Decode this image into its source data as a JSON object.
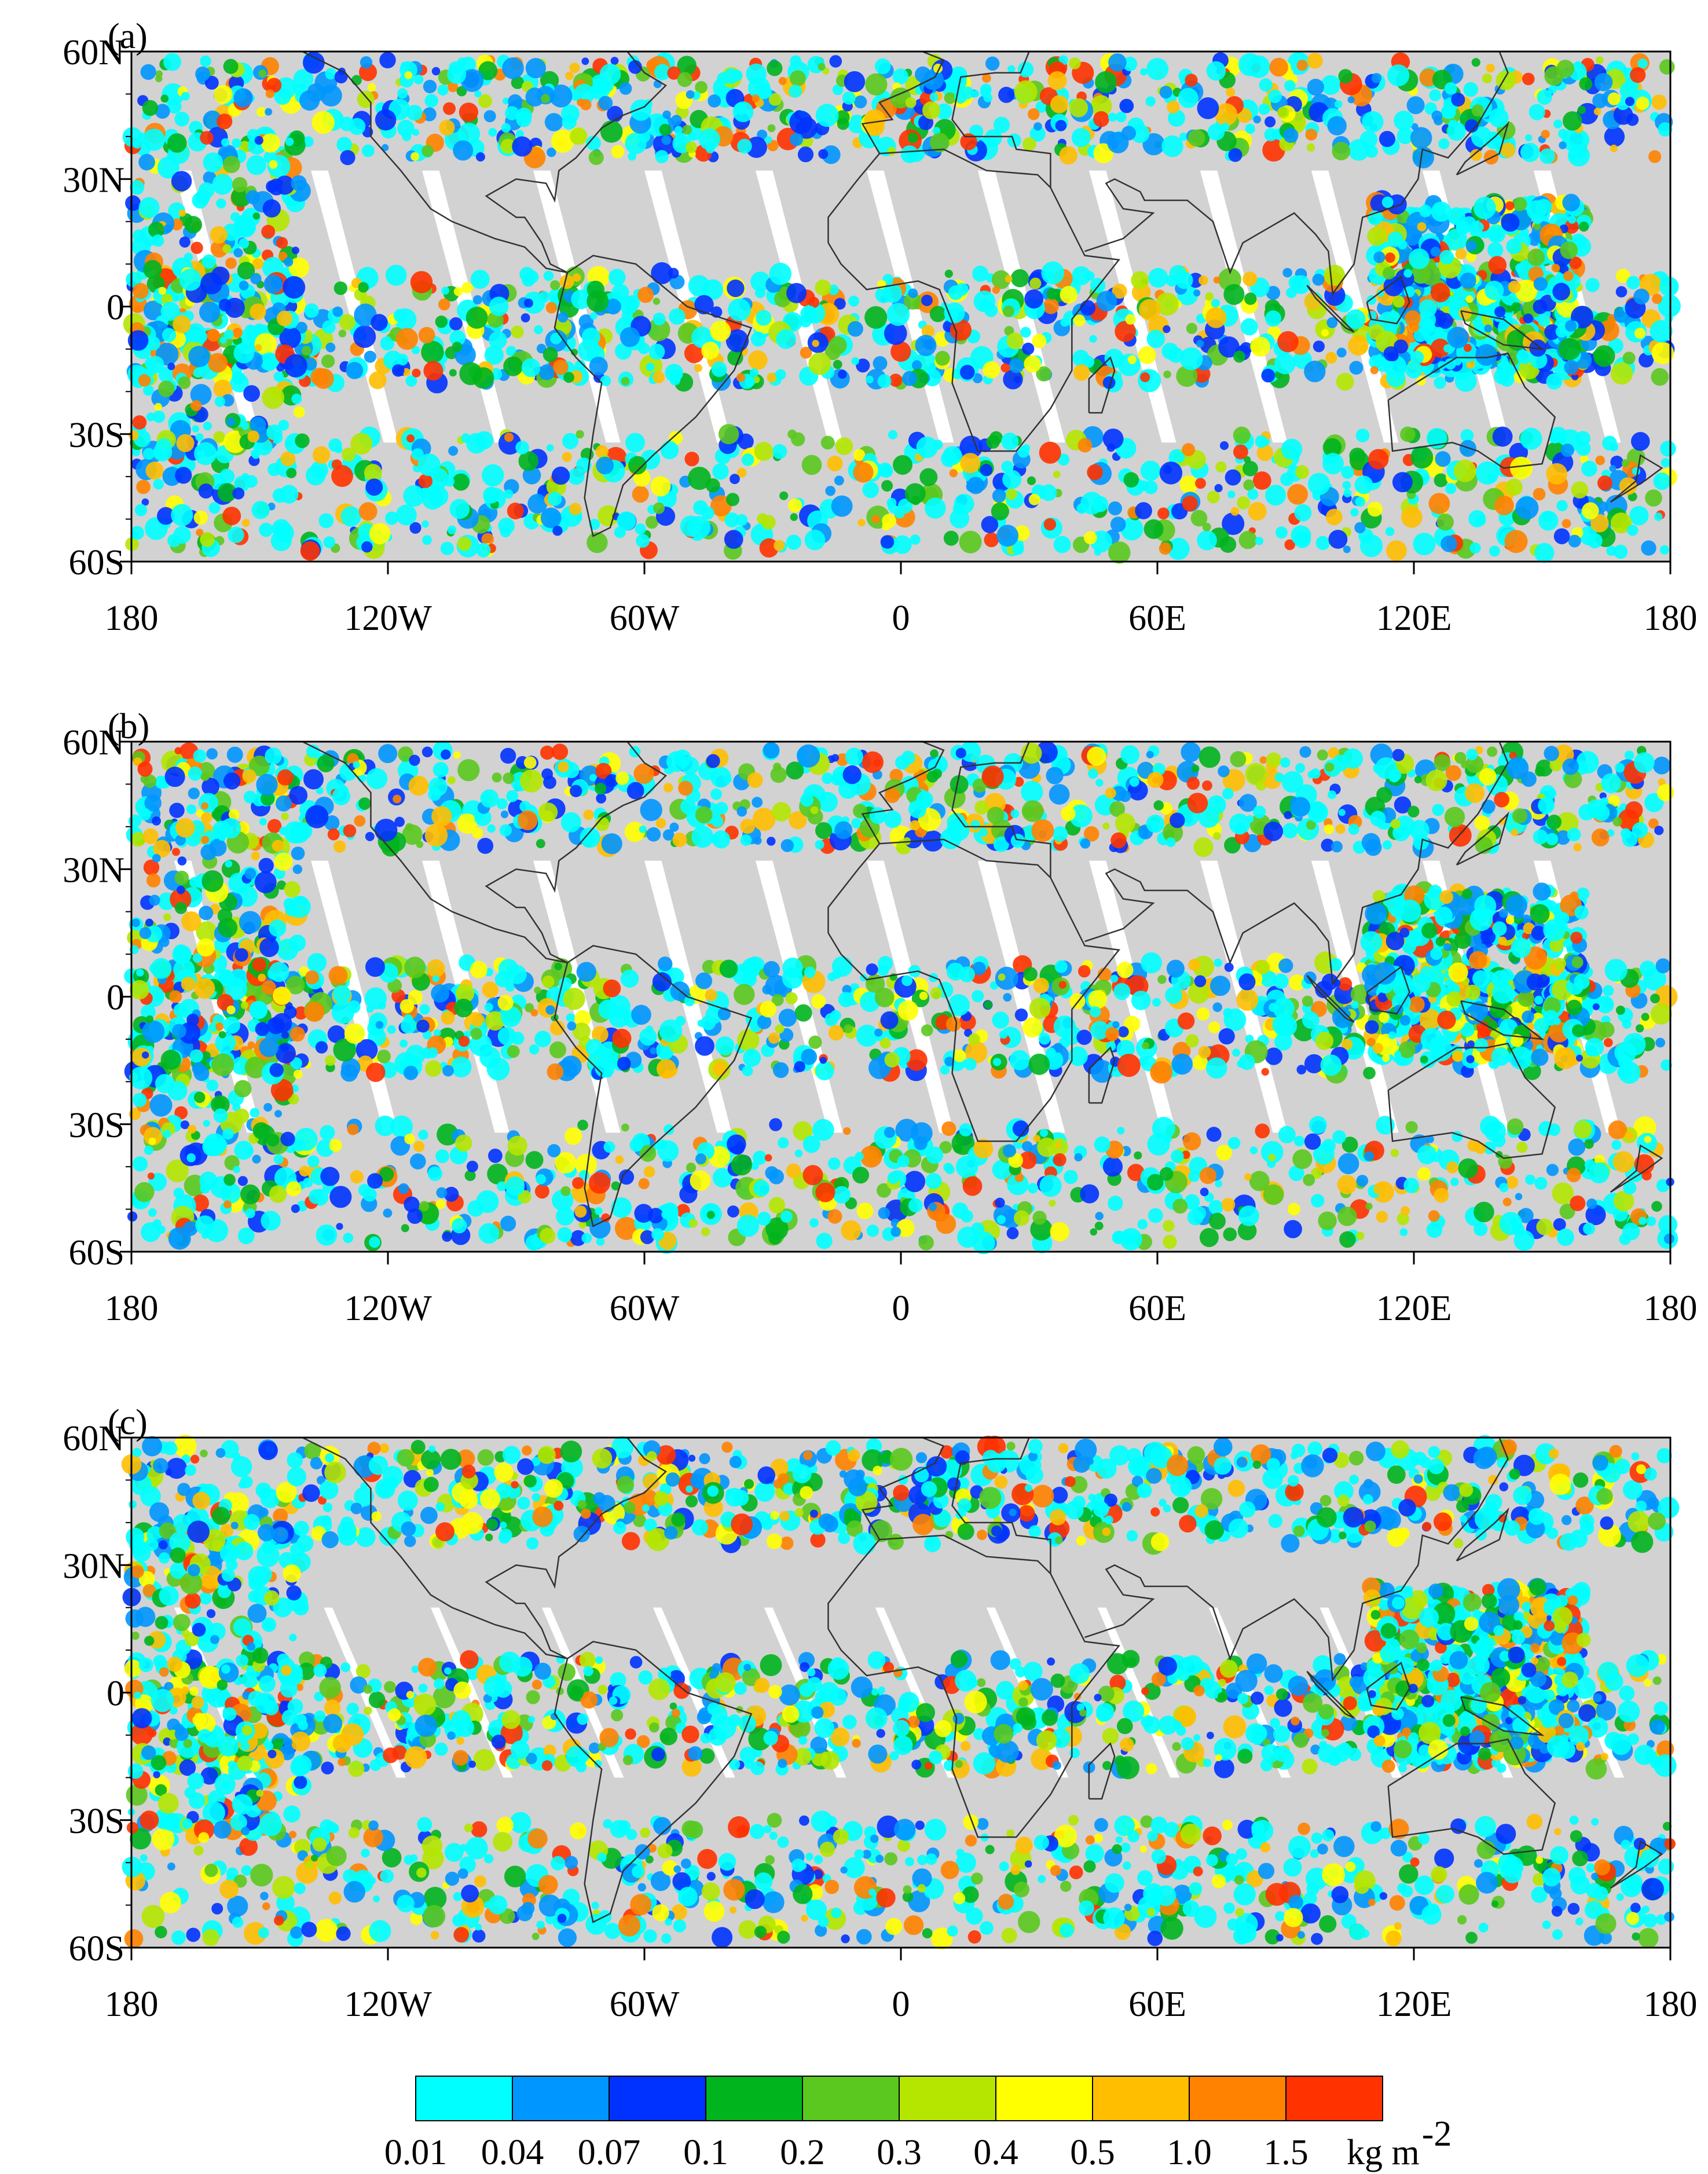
{
  "panels": [
    {
      "label": "(a)"
    },
    {
      "label": "(b)"
    },
    {
      "label": "(c)"
    }
  ],
  "lat_labels": [
    "60N",
    "30N",
    "0",
    "30S",
    "60S"
  ],
  "lon_labels": [
    "180",
    "120W",
    "60W",
    "0",
    "60E",
    "120E",
    "180"
  ],
  "colorbar": {
    "levels": [
      "0.01",
      "0.04",
      "0.07",
      "0.1",
      "0.2",
      "0.3",
      "0.4",
      "0.5",
      "1.0",
      "1.5"
    ],
    "colors": [
      "#00ffff",
      "#0096ff",
      "#0032ff",
      "#00b41e",
      "#5ac81e",
      "#b4e600",
      "#ffff00",
      "#ffbe00",
      "#ff8200",
      "#ff3200"
    ],
    "unit": "kg m",
    "unit_exponent": "-2"
  }
}
